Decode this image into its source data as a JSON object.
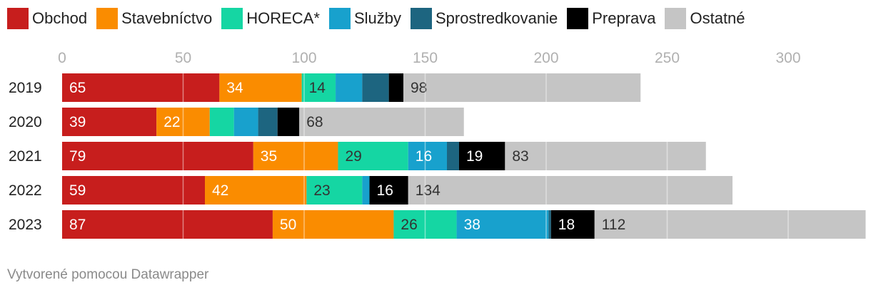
{
  "chart_data": {
    "type": "bar",
    "orientation": "horizontal",
    "stacked": true,
    "categories": [
      "2019",
      "2020",
      "2021",
      "2022",
      "2023"
    ],
    "series": [
      {
        "name": "Obchod",
        "color": "#c71e1d",
        "label_color": "#ffffff",
        "values": [
          65,
          39,
          79,
          59,
          87
        ],
        "labels": [
          "65",
          "39",
          "79",
          "59",
          "87"
        ]
      },
      {
        "name": "Stavebníctvo",
        "color": "#fa8c00",
        "label_color": "#ffffff",
        "values": [
          34,
          22,
          35,
          42,
          50
        ],
        "labels": [
          "34",
          "22",
          "35",
          "42",
          "50"
        ]
      },
      {
        "name": "HORECA*",
        "color": "#15d6a3",
        "label_color": "#333333",
        "values": [
          14,
          10,
          29,
          23,
          26
        ],
        "labels": [
          "14",
          "",
          "29",
          "23",
          "26"
        ]
      },
      {
        "name": "Služby",
        "color": "#18a1cd",
        "label_color": "#ffffff",
        "values": [
          11,
          10,
          16,
          3,
          38
        ],
        "labels": [
          "",
          "",
          "16",
          "",
          "38"
        ]
      },
      {
        "name": "Sprostredkovanie",
        "color": "#1d6580",
        "label_color": "#ffffff",
        "values": [
          11,
          8,
          5,
          0,
          1
        ],
        "labels": [
          "",
          "",
          "",
          "",
          ""
        ]
      },
      {
        "name": "Preprava",
        "color": "#000000",
        "label_color": "#ffffff",
        "values": [
          6,
          9,
          19,
          16,
          18
        ],
        "labels": [
          "",
          "",
          "19",
          "16",
          "18"
        ]
      },
      {
        "name": "Ostatné",
        "color": "#c5c5c5",
        "label_color": "#333333",
        "values": [
          98,
          68,
          83,
          134,
          112
        ],
        "labels": [
          "98",
          "68",
          "83",
          "134",
          "112"
        ]
      }
    ],
    "xlim": [
      0,
      330
    ],
    "xticks": [
      0,
      50,
      100,
      150,
      200,
      250,
      300
    ],
    "grid": true,
    "legend_position": "top-left"
  },
  "footer": {
    "text": "Vytvorené pomocou Datawrapper"
  }
}
